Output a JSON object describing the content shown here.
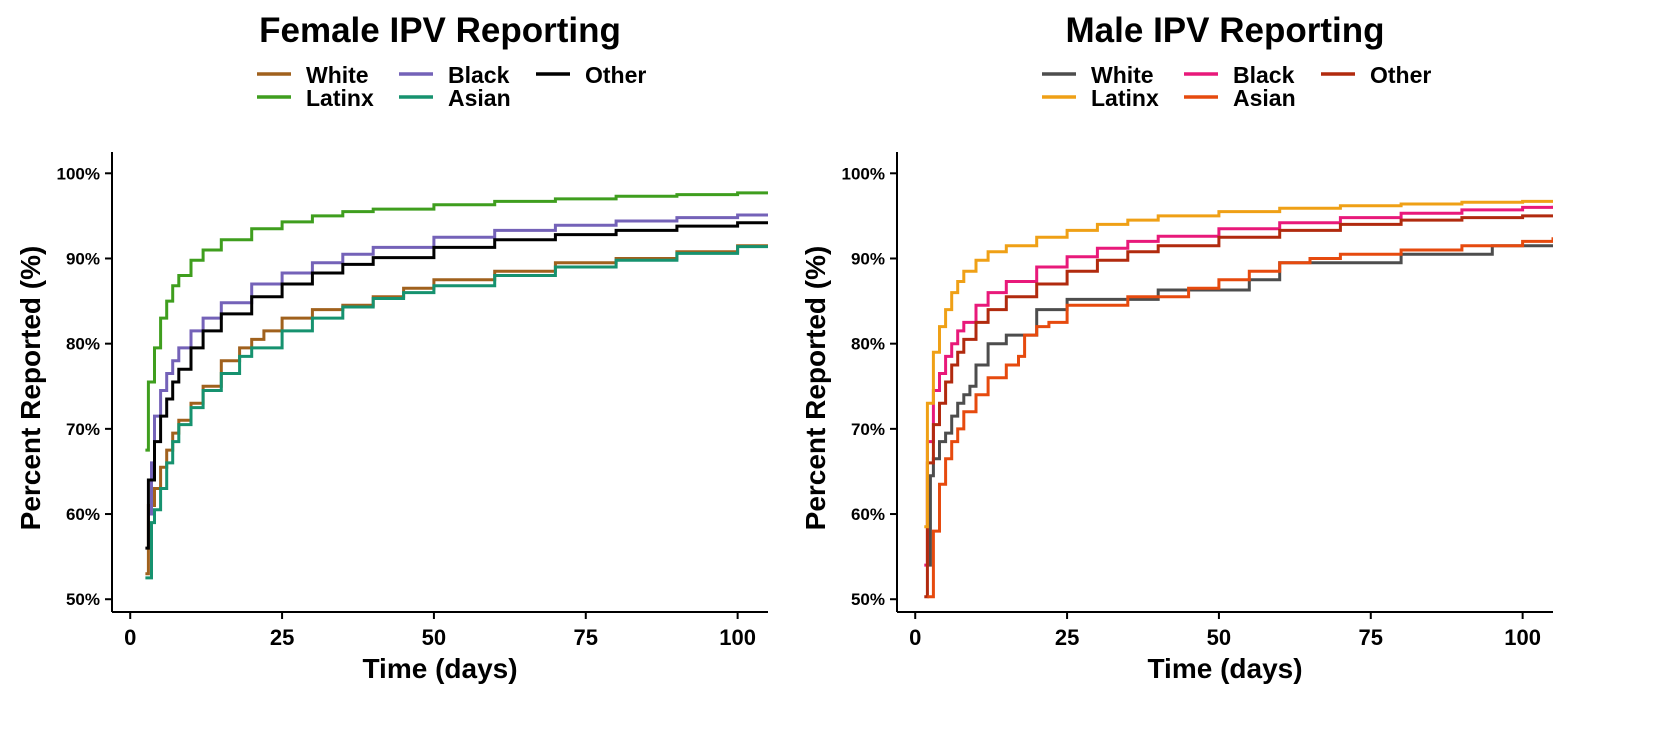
{
  "chart_data": [
    {
      "type": "line",
      "title": "Female IPV Reporting",
      "xlabel": "Time (days)",
      "ylabel": "Percent Reported (%)",
      "xlim": [
        -3,
        105
      ],
      "ylim": [
        48.5,
        102.5
      ],
      "x_ticks": [
        0,
        25,
        50,
        75,
        100
      ],
      "x_tick_labels": [
        "0",
        "25",
        "50",
        "75",
        "100"
      ],
      "y_ticks": [
        50,
        60,
        70,
        80,
        90,
        100
      ],
      "y_tick_labels": [
        "50%",
        "60%",
        "70%",
        "80%",
        "90%",
        "100%"
      ],
      "grid": false,
      "legend_position": "top",
      "series": [
        {
          "name": "White",
          "color": "#A0611D",
          "x": [
            2.5,
            3,
            4,
            5,
            6,
            7,
            8,
            10,
            12,
            15,
            18,
            20,
            22,
            25,
            30,
            35,
            40,
            45,
            50,
            60,
            70,
            80,
            90,
            100,
            105
          ],
          "y": [
            53,
            61,
            63,
            65.5,
            67.5,
            69.5,
            71,
            73,
            75,
            78,
            79.5,
            80.5,
            81.5,
            83,
            84,
            84.5,
            85.5,
            86.5,
            87.5,
            88.5,
            89.5,
            90,
            90.8,
            91.5,
            91.5
          ]
        },
        {
          "name": "Black",
          "color": "#7462B8",
          "x": [
            3,
            3.5,
            4,
            5,
            6,
            7,
            8,
            10,
            12,
            15,
            20,
            25,
            30,
            35,
            40,
            50,
            60,
            70,
            80,
            90,
            100,
            105
          ],
          "y": [
            60,
            66,
            71.5,
            74.5,
            76.5,
            78,
            79.5,
            81.5,
            83,
            84.8,
            87,
            88.3,
            89.5,
            90.5,
            91.3,
            92.5,
            93.3,
            93.9,
            94.4,
            94.8,
            95.1,
            95.2
          ]
        },
        {
          "name": "Other",
          "color": "#000000",
          "x": [
            2.5,
            3,
            4,
            5,
            6,
            7,
            8,
            10,
            12,
            15,
            20,
            25,
            30,
            35,
            40,
            50,
            60,
            70,
            80,
            90,
            100,
            105
          ],
          "y": [
            56,
            64,
            68.5,
            71.5,
            73.5,
            75.5,
            77,
            79.5,
            81.5,
            83.5,
            85.5,
            87,
            88.3,
            89.3,
            90.1,
            91.3,
            92.2,
            92.8,
            93.3,
            93.8,
            94.2,
            94.3
          ]
        },
        {
          "name": "Latinx",
          "color": "#3F9E1E",
          "x": [
            2.5,
            3,
            4,
            5,
            6,
            7,
            8,
            10,
            12,
            15,
            20,
            25,
            30,
            35,
            40,
            50,
            60,
            70,
            80,
            90,
            100,
            105
          ],
          "y": [
            67.5,
            75.5,
            79.5,
            83,
            85,
            86.8,
            88,
            89.8,
            91,
            92.2,
            93.5,
            94.3,
            95,
            95.5,
            95.8,
            96.3,
            96.7,
            97,
            97.3,
            97.5,
            97.7,
            97.8
          ]
        },
        {
          "name": "Asian",
          "color": "#16926F",
          "x": [
            2.5,
            3.5,
            4,
            5,
            6,
            7,
            8,
            10,
            12,
            15,
            18,
            20,
            25,
            30,
            35,
            40,
            45,
            50,
            60,
            70,
            80,
            90,
            100,
            105
          ],
          "y": [
            52.5,
            59,
            60.5,
            63,
            66,
            68.5,
            70.5,
            72.5,
            74.5,
            76.5,
            78.5,
            79.5,
            81.5,
            83,
            84.3,
            85.3,
            86,
            86.8,
            88,
            89,
            89.8,
            90.6,
            91.4,
            91.5
          ]
        }
      ]
    },
    {
      "type": "line",
      "title": "Male IPV Reporting",
      "xlabel": "Time (days)",
      "ylabel": "Percent Reported (%)",
      "xlim": [
        -3,
        105
      ],
      "ylim": [
        48.5,
        102.5
      ],
      "x_ticks": [
        0,
        25,
        50,
        75,
        100
      ],
      "x_tick_labels": [
        "0",
        "25",
        "50",
        "75",
        "100"
      ],
      "y_ticks": [
        50,
        60,
        70,
        80,
        90,
        100
      ],
      "y_tick_labels": [
        "50%",
        "60%",
        "70%",
        "80%",
        "90%",
        "100%"
      ],
      "grid": false,
      "legend_position": "top",
      "series": [
        {
          "name": "White",
          "color": "#4D4D4D",
          "x": [
            2,
            2.5,
            3,
            4,
            5,
            6,
            7,
            8,
            9,
            10,
            12,
            15,
            18,
            20,
            25,
            30,
            35,
            40,
            45,
            50,
            55,
            60,
            65,
            70,
            75,
            80,
            90,
            95,
            105
          ],
          "y": [
            54,
            64.5,
            66.5,
            68.5,
            69.5,
            71.5,
            73,
            74,
            75,
            77.5,
            80,
            81,
            81,
            84,
            85.2,
            85.2,
            85.2,
            86.3,
            86.3,
            86.3,
            87.5,
            89.5,
            89.5,
            89.5,
            89.5,
            90.5,
            90.5,
            91.5,
            91.5
          ]
        },
        {
          "name": "Black",
          "color": "#E8197A",
          "x": [
            1.5,
            2,
            3,
            4,
            5,
            6,
            7,
            8,
            10,
            12,
            15,
            20,
            25,
            30,
            35,
            40,
            50,
            60,
            70,
            80,
            90,
            100,
            105
          ],
          "y": [
            54,
            68.5,
            74.5,
            76.5,
            78.5,
            80,
            81.5,
            82.5,
            84.5,
            86,
            87.3,
            89,
            90.2,
            91.2,
            92,
            92.6,
            93.5,
            94.2,
            94.8,
            95.3,
            95.7,
            96,
            96.2
          ]
        },
        {
          "name": "Other",
          "color": "#B12A0E",
          "x": [
            1.5,
            2,
            3,
            4,
            5,
            6,
            7,
            8,
            10,
            12,
            15,
            20,
            25,
            30,
            35,
            40,
            50,
            60,
            70,
            80,
            90,
            100,
            105
          ],
          "y": [
            50.3,
            66,
            70.5,
            73,
            75.5,
            77.5,
            79,
            80.5,
            82.5,
            84,
            85.5,
            87,
            88.5,
            89.8,
            90.8,
            91.5,
            92.5,
            93.3,
            94,
            94.5,
            94.8,
            95,
            95
          ]
        },
        {
          "name": "Latinx",
          "color": "#EFA016",
          "x": [
            1.5,
            2,
            3,
            4,
            5,
            6,
            7,
            8,
            10,
            12,
            15,
            20,
            25,
            30,
            35,
            40,
            50,
            60,
            70,
            80,
            90,
            100,
            105
          ],
          "y": [
            58.5,
            73,
            79,
            82,
            84,
            86,
            87.3,
            88.5,
            89.8,
            90.8,
            91.5,
            92.5,
            93.3,
            94,
            94.5,
            95,
            95.5,
            95.9,
            96.2,
            96.4,
            96.6,
            96.7,
            96.8
          ]
        },
        {
          "name": "Asian",
          "color": "#E64A0E",
          "x": [
            2,
            3,
            4,
            5,
            6,
            7,
            8,
            10,
            12,
            15,
            17,
            18,
            20,
            22,
            25,
            30,
            35,
            40,
            45,
            50,
            55,
            60,
            65,
            70,
            80,
            90,
            100,
            105
          ],
          "y": [
            50.3,
            58,
            63.5,
            66.5,
            68.5,
            70,
            72,
            74,
            76,
            77.5,
            78.5,
            81,
            82,
            82.5,
            84.5,
            84.5,
            85.5,
            85.5,
            86.5,
            87.5,
            88.5,
            89.5,
            90,
            90.5,
            91,
            91.5,
            92,
            92.5
          ]
        }
      ]
    }
  ]
}
